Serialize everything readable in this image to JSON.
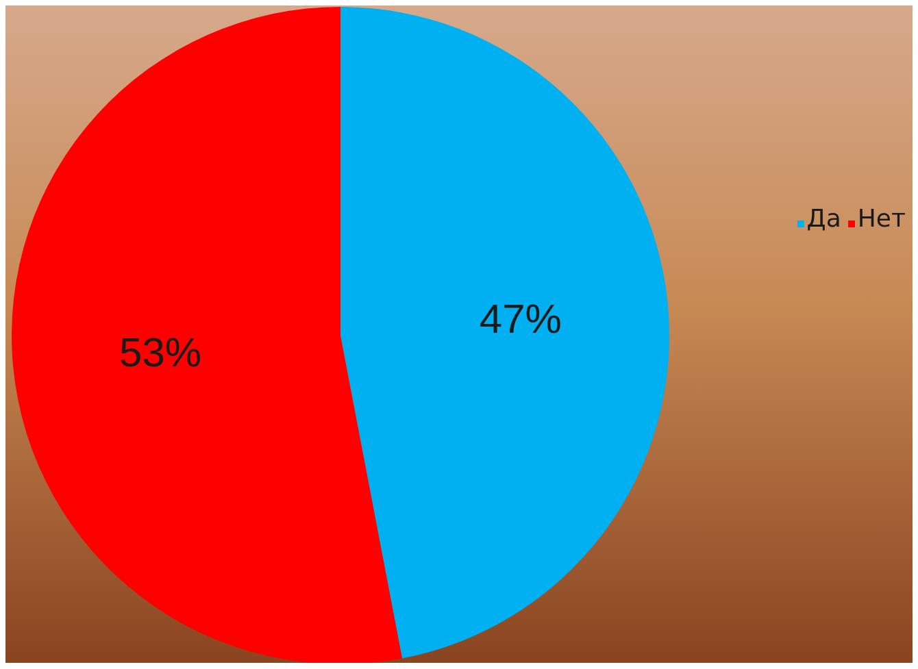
{
  "chart_data": {
    "type": "pie",
    "categories": [
      "Да",
      "Нет"
    ],
    "values": [
      47,
      53
    ],
    "colors": [
      "#00b0f0",
      "#ff0000"
    ],
    "value_labels": [
      "47%",
      "53%"
    ],
    "legend": "right"
  }
}
